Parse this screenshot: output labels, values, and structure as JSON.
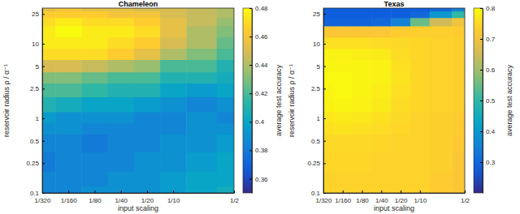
{
  "chart_data": [
    {
      "type": "heatmap",
      "title": "Chameleon",
      "x_label": "input scaling",
      "y_label": "reservoir radius  ρ / α⁻¹",
      "log": true,
      "x": [
        0.003125,
        0.00625,
        0.0125,
        0.025,
        0.05,
        0.1,
        0.2,
        0.5
      ],
      "y": [
        0.1,
        0.15,
        0.25,
        0.5,
        0.75,
        1,
        1.5,
        2.5,
        3.5,
        5,
        7.5,
        10,
        15,
        20,
        25,
        30
      ],
      "z": [
        [
          0.385,
          0.385,
          0.39,
          0.39,
          0.39,
          0.395,
          0.4,
          0.405
        ],
        [
          0.385,
          0.385,
          0.385,
          0.39,
          0.39,
          0.395,
          0.4,
          0.4
        ],
        [
          0.38,
          0.385,
          0.385,
          0.385,
          0.39,
          0.39,
          0.395,
          0.4
        ],
        [
          0.385,
          0.385,
          0.38,
          0.385,
          0.385,
          0.39,
          0.39,
          0.395
        ],
        [
          0.39,
          0.39,
          0.385,
          0.385,
          0.385,
          0.385,
          0.39,
          0.39
        ],
        [
          0.395,
          0.39,
          0.39,
          0.39,
          0.385,
          0.385,
          0.39,
          0.385
        ],
        [
          0.41,
          0.405,
          0.4,
          0.4,
          0.395,
          0.39,
          0.385,
          0.39
        ],
        [
          0.42,
          0.42,
          0.415,
          0.41,
          0.41,
          0.4,
          0.395,
          0.4
        ],
        [
          0.43,
          0.43,
          0.425,
          0.42,
          0.42,
          0.41,
          0.41,
          0.405
        ],
        [
          0.45,
          0.45,
          0.445,
          0.44,
          0.435,
          0.42,
          0.42,
          0.41
        ],
        [
          0.47,
          0.47,
          0.47,
          0.465,
          0.455,
          0.44,
          0.43,
          0.42
        ],
        [
          0.475,
          0.475,
          0.475,
          0.47,
          0.465,
          0.45,
          0.44,
          0.425
        ],
        [
          0.475,
          0.48,
          0.475,
          0.475,
          0.47,
          0.455,
          0.44,
          0.43
        ],
        [
          0.47,
          0.475,
          0.47,
          0.47,
          0.465,
          0.455,
          0.445,
          0.435
        ],
        [
          0.465,
          0.465,
          0.465,
          0.46,
          0.46,
          0.45,
          0.445,
          0.44
        ],
        [
          0.455,
          0.46,
          0.455,
          0.455,
          0.45,
          0.45,
          0.445,
          0.44
        ]
      ],
      "xlim": [
        0.003125,
        0.5
      ],
      "ylim": [
        0.1,
        30
      ],
      "xticks": [
        {
          "value": 0.003125,
          "label": "1/320"
        },
        {
          "value": 0.00625,
          "label": "1/160"
        },
        {
          "value": 0.0125,
          "label": "1/80"
        },
        {
          "value": 0.025,
          "label": "1/40"
        },
        {
          "value": 0.05,
          "label": "1/20"
        },
        {
          "value": 0.1,
          "label": "1/10"
        },
        {
          "value": 0.5,
          "label": "1/2"
        }
      ],
      "yticks": [
        0.1,
        0.25,
        0.5,
        1,
        2.5,
        5,
        10,
        25
      ],
      "colorbar": {
        "label": "average test accuracy",
        "range": [
          0.35,
          0.48
        ],
        "ticks": [
          0.36,
          0.38,
          0.4,
          0.42,
          0.44,
          0.46,
          0.48
        ]
      }
    },
    {
      "type": "heatmap",
      "title": "Texas",
      "x_label": "input scaling",
      "y_label": "reservoir radius  ρ / α⁻¹",
      "log": true,
      "x": [
        0.003125,
        0.00625,
        0.0125,
        0.025,
        0.05,
        0.1,
        0.2,
        0.5
      ],
      "y": [
        0.1,
        0.15,
        0.25,
        0.5,
        0.75,
        1,
        1.5,
        2.5,
        3.5,
        5,
        7.5,
        10,
        15,
        20,
        25,
        30
      ],
      "z": [
        [
          0.74,
          0.74,
          0.74,
          0.74,
          0.74,
          0.74,
          0.73,
          0.72
        ],
        [
          0.74,
          0.74,
          0.74,
          0.74,
          0.74,
          0.74,
          0.73,
          0.72
        ],
        [
          0.745,
          0.745,
          0.745,
          0.74,
          0.74,
          0.74,
          0.735,
          0.72
        ],
        [
          0.75,
          0.75,
          0.75,
          0.745,
          0.74,
          0.74,
          0.735,
          0.725
        ],
        [
          0.76,
          0.765,
          0.76,
          0.755,
          0.745,
          0.74,
          0.735,
          0.73
        ],
        [
          0.77,
          0.775,
          0.77,
          0.76,
          0.75,
          0.74,
          0.735,
          0.73
        ],
        [
          0.785,
          0.79,
          0.785,
          0.775,
          0.755,
          0.745,
          0.74,
          0.735
        ],
        [
          0.79,
          0.795,
          0.79,
          0.78,
          0.76,
          0.745,
          0.74,
          0.735
        ],
        [
          0.795,
          0.795,
          0.79,
          0.785,
          0.765,
          0.745,
          0.74,
          0.735
        ],
        [
          0.79,
          0.79,
          0.79,
          0.785,
          0.76,
          0.745,
          0.74,
          0.735
        ],
        [
          0.785,
          0.785,
          0.78,
          0.775,
          0.755,
          0.745,
          0.74,
          0.735
        ],
        [
          0.76,
          0.76,
          0.76,
          0.755,
          0.75,
          0.745,
          0.74,
          0.735
        ],
        [
          0.72,
          0.72,
          0.72,
          0.72,
          0.73,
          0.735,
          0.735,
          0.73
        ],
        [
          0.29,
          0.29,
          0.29,
          0.3,
          0.35,
          0.55,
          0.65,
          0.7
        ],
        [
          0.28,
          0.28,
          0.28,
          0.28,
          0.28,
          0.3,
          0.4,
          0.5
        ],
        [
          0.28,
          0.28,
          0.28,
          0.28,
          0.28,
          0.28,
          0.3,
          0.35
        ]
      ],
      "xlim": [
        0.003125,
        0.5
      ],
      "ylim": [
        0.1,
        30
      ],
      "xticks": [
        {
          "value": 0.003125,
          "label": "1/320"
        },
        {
          "value": 0.00625,
          "label": "1/160"
        },
        {
          "value": 0.0125,
          "label": "1/80"
        },
        {
          "value": 0.025,
          "label": "1/40"
        },
        {
          "value": 0.05,
          "label": "1/20"
        },
        {
          "value": 0.1,
          "label": "1/10"
        },
        {
          "value": 0.5,
          "label": "1/2"
        }
      ],
      "yticks": [
        0.1,
        0.25,
        0.5,
        1,
        2.5,
        5,
        10,
        25
      ],
      "colorbar": {
        "label": "average test accuracy",
        "range": [
          0.2,
          0.8
        ],
        "ticks": [
          0.3,
          0.4,
          0.5,
          0.6,
          0.7,
          0.8
        ]
      }
    }
  ]
}
